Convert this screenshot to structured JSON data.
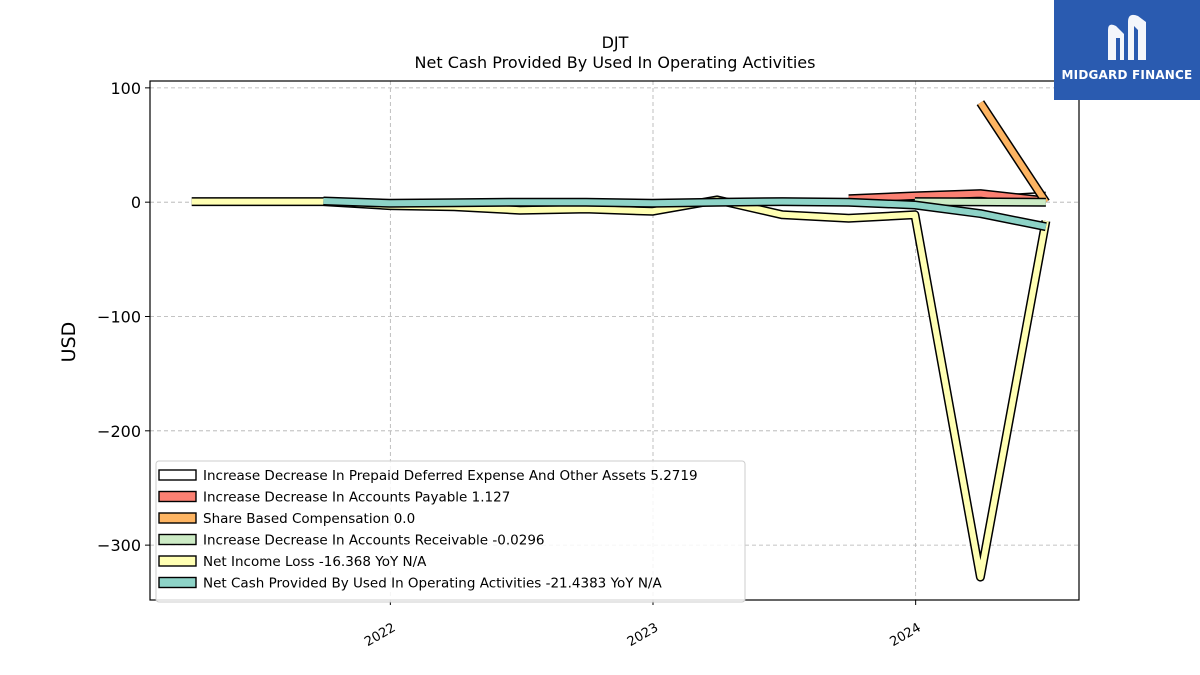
{
  "chart_data": {
    "type": "line",
    "title": "DJT",
    "subtitle": "Net Cash Provided By Used In Operating Activities",
    "xlabel": "",
    "ylabel": "USD",
    "x_ticks": [
      "2022",
      "2023",
      "2024"
    ],
    "y_ticks": [
      100,
      0,
      -100,
      -200,
      -300
    ],
    "xlim": [
      "2021-02-01",
      "2024-08-15"
    ],
    "ylim": [
      -348,
      106
    ],
    "grid": true,
    "legend_position": "lower-left",
    "series": [
      {
        "name": "Increase Decrease In Prepaid Deferred Expense And Other Assets  5.2719",
        "color": "#ffffff",
        "x": [
          "2024-03-31",
          "2024-06-30"
        ],
        "y": [
          2.0,
          5.2719
        ]
      },
      {
        "name": "Increase Decrease In Accounts Payable  1.127",
        "color": "#fb8072",
        "x": [
          "2023-09-30",
          "2023-12-31",
          "2024-03-31",
          "2024-06-30"
        ],
        "y": [
          3.0,
          5.5,
          7.5,
          1.127
        ]
      },
      {
        "name": "Share Based Compensation  0.0",
        "color": "#fdb462",
        "x": [
          "2024-03-31",
          "2024-06-30"
        ],
        "y": [
          87.0,
          0.0
        ]
      },
      {
        "name": "Increase Decrease In Accounts Receivable  -0.0296",
        "color": "#ccebc5",
        "x": [
          "2023-12-31",
          "2024-03-31",
          "2024-06-30"
        ],
        "y": [
          0.5,
          0.2,
          -0.0296
        ]
      },
      {
        "name": "Net Income Loss  -16.368 YoY N/A",
        "color": "#ffffb3",
        "x": [
          "2021-03-31",
          "2021-09-30",
          "2021-12-31",
          "2022-03-31",
          "2022-06-30",
          "2022-09-30",
          "2022-12-31",
          "2023-03-31",
          "2023-06-30",
          "2023-09-30",
          "2023-12-31",
          "2024-03-31",
          "2024-06-30"
        ],
        "y": [
          0.5,
          0.5,
          -3.0,
          -4.0,
          -7.0,
          -6.0,
          -8.0,
          2.0,
          -11.0,
          -14.0,
          -11.0,
          -328.0,
          -16.368
        ]
      },
      {
        "name": "Net Cash Provided By Used In Operating Activities  -21.4383 YoY N/A",
        "color": "#8dd3c7",
        "x": [
          "2021-09-30",
          "2021-12-31",
          "2022-03-31",
          "2022-06-30",
          "2022-09-30",
          "2022-12-31",
          "2023-03-31",
          "2023-06-30",
          "2023-09-30",
          "2023-12-31",
          "2024-03-31",
          "2024-06-30"
        ],
        "y": [
          1.0,
          -1.0,
          -0.5,
          0.0,
          0.0,
          -1.0,
          0.0,
          0.5,
          0.0,
          -2.5,
          -10.0,
          -21.4383
        ]
      }
    ]
  },
  "logo": {
    "text": "MIDGARD FINANCE",
    "background": "#2a5bb0"
  }
}
